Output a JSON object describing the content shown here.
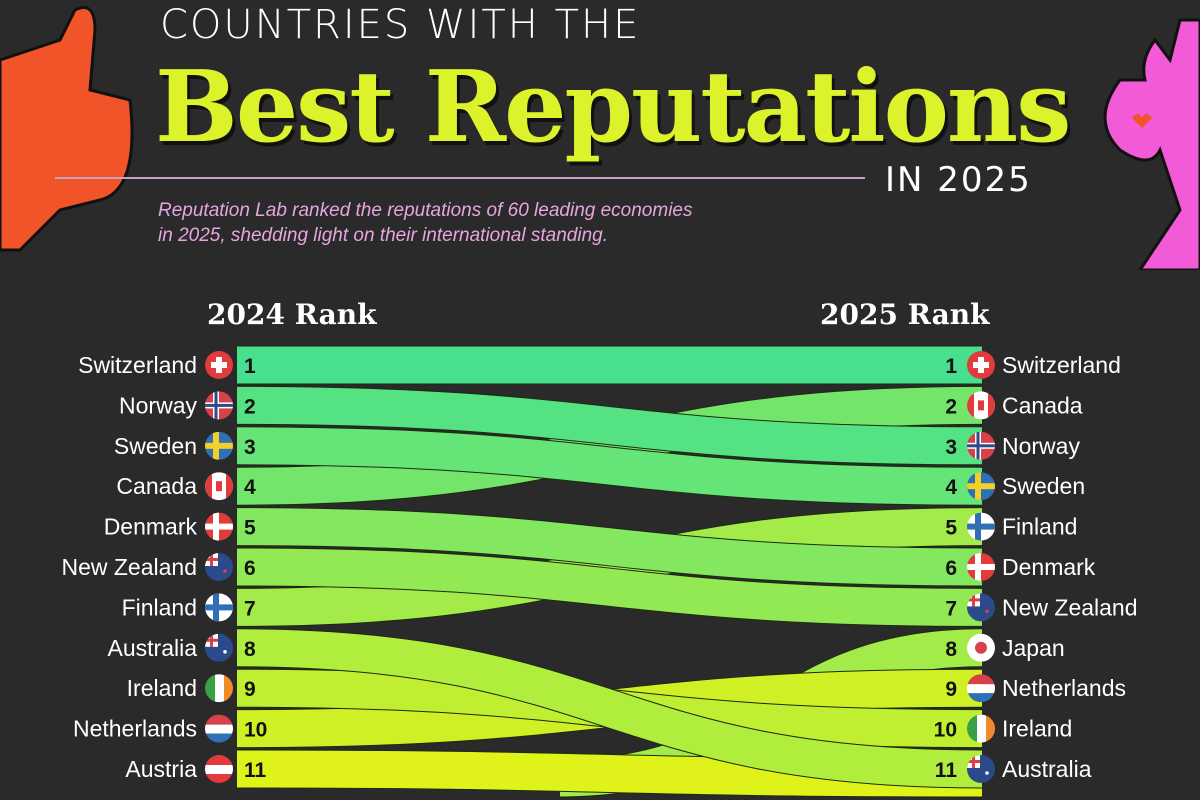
{
  "header": {
    "pre_title": "COUNTRIES WITH THE",
    "title": "Best Reputations",
    "year": "IN 2025",
    "subtitle_line1": "Reputation Lab ranked the reputations of 60 leading economies",
    "subtitle_line2": "in 2025, shedding light on their international standing."
  },
  "chart_data": {
    "type": "bump",
    "left_label": "2024 Rank",
    "right_label": "2025 Rank",
    "left": [
      {
        "rank": "1",
        "country": "Switzerland",
        "flag": "switzerland-flag",
        "rank_2025": 1
      },
      {
        "rank": "2",
        "country": "Norway",
        "flag": "norway-flag",
        "rank_2025": 3
      },
      {
        "rank": "3",
        "country": "Sweden",
        "flag": "sweden-flag",
        "rank_2025": 4
      },
      {
        "rank": "4",
        "country": "Canada",
        "flag": "canada-flag",
        "rank_2025": 2
      },
      {
        "rank": "5",
        "country": "Denmark",
        "flag": "denmark-flag",
        "rank_2025": 6
      },
      {
        "rank": "6",
        "country": "New Zealand",
        "flag": "new-zealand-flag",
        "rank_2025": 7
      },
      {
        "rank": "7",
        "country": "Finland",
        "flag": "finland-flag",
        "rank_2025": 5
      },
      {
        "rank": "8",
        "country": "Australia",
        "flag": "australia-flag",
        "rank_2025": 11
      },
      {
        "rank": "9",
        "country": "Ireland",
        "flag": "ireland-flag",
        "rank_2025": 10
      },
      {
        "rank": "10",
        "country": "Netherlands",
        "flag": "netherlands-flag",
        "rank_2025": 9
      },
      {
        "rank": "11",
        "country": "Austria",
        "flag": "austria-flag",
        "rank_2025": null
      }
    ],
    "right": [
      {
        "rank": "1",
        "country": "Switzerland",
        "flag": "switzerland-flag"
      },
      {
        "rank": "2",
        "country": "Canada",
        "flag": "canada-flag"
      },
      {
        "rank": "3",
        "country": "Norway",
        "flag": "norway-flag"
      },
      {
        "rank": "4",
        "country": "Sweden",
        "flag": "sweden-flag"
      },
      {
        "rank": "5",
        "country": "Finland",
        "flag": "finland-flag"
      },
      {
        "rank": "6",
        "country": "Denmark",
        "flag": "denmark-flag"
      },
      {
        "rank": "7",
        "country": "New Zealand",
        "flag": "new-zealand-flag"
      },
      {
        "rank": "8",
        "country": "Japan",
        "flag": "japan-flag",
        "rank_2024": null
      },
      {
        "rank": "9",
        "country": "Netherlands",
        "flag": "netherlands-flag"
      },
      {
        "rank": "10",
        "country": "Ireland",
        "flag": "ireland-flag"
      },
      {
        "rank": "11",
        "country": "Australia",
        "flag": "australia-flag"
      }
    ],
    "colors": {
      "top": "#46e08e",
      "bottom": "#dff21a",
      "background": "#2a2a2a"
    }
  }
}
